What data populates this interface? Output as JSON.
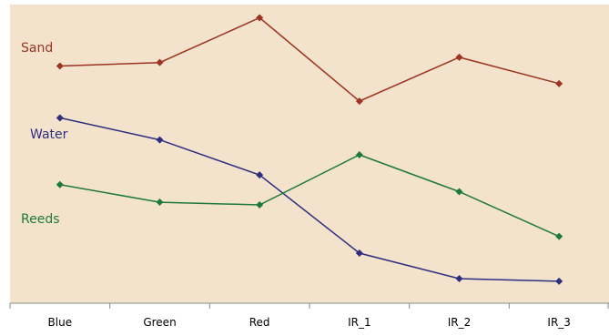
{
  "chart_data": {
    "type": "line",
    "categories": [
      "Blue",
      "Green",
      "Red",
      "IR_1",
      "IR_2",
      "IR_3"
    ],
    "series": [
      {
        "name": "Sand",
        "color": "#9b3420",
        "values": [
          75.0,
          77.0,
          102.5,
          55.0,
          80.0,
          65.0
        ]
      },
      {
        "name": "Water",
        "color": "#2e2e7e",
        "values": [
          45.5,
          33.0,
          13.0,
          -31.5,
          -46.0,
          -47.5
        ]
      },
      {
        "name": "Reeds",
        "color": "#1e7a3c",
        "values": [
          7.5,
          -2.5,
          -4.0,
          24.5,
          3.5,
          -22.0
        ]
      }
    ],
    "ylim": [
      -60,
      110
    ],
    "grid": false,
    "legend": "inline-left",
    "background_color": "#f3e2cc",
    "axis_color": "#8a8a8a"
  }
}
